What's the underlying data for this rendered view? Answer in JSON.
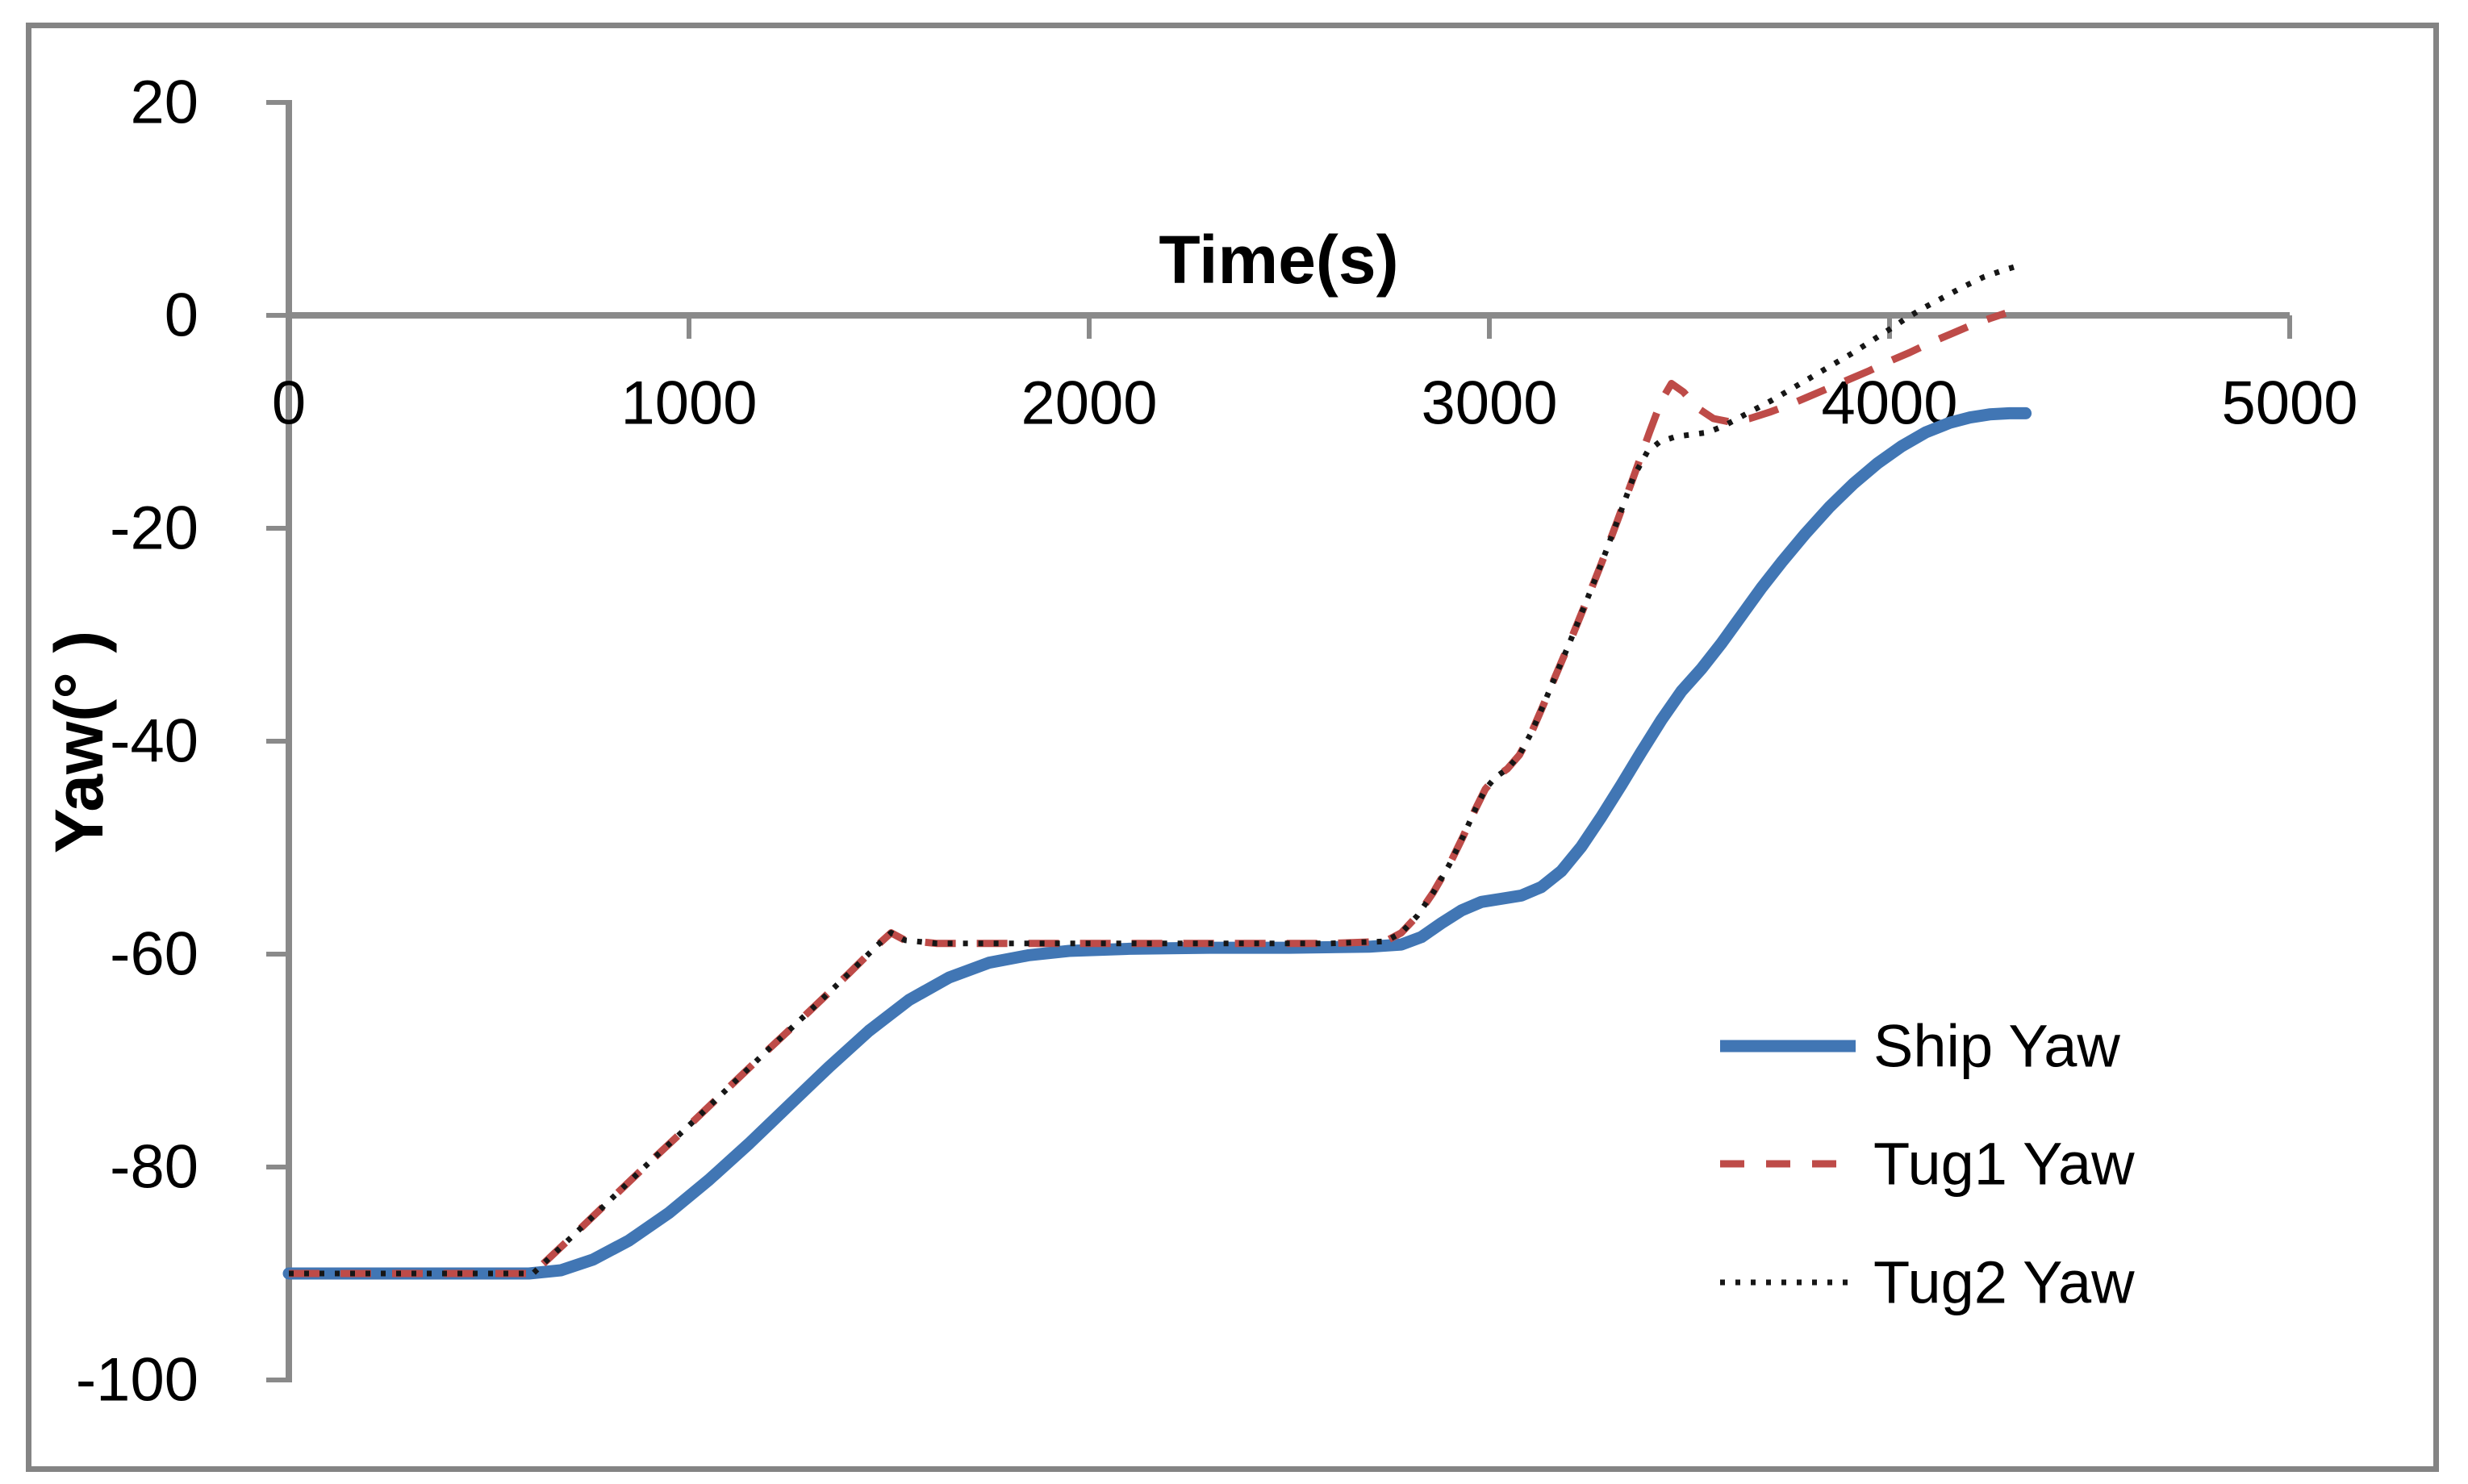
{
  "chart_data": {
    "type": "line",
    "title": "",
    "xlabel": "Time(s)",
    "ylabel": "Yaw(° )",
    "xlim": [
      0,
      5000
    ],
    "ylim": [
      -100,
      20
    ],
    "x_ticks": [
      0,
      1000,
      2000,
      3000,
      4000,
      5000
    ],
    "y_ticks": [
      20,
      0,
      -20,
      -40,
      -60,
      -80,
      -100
    ],
    "grid": false,
    "legend_position": "lower-right-inside",
    "axis_color": "#8a8a8a",
    "series": [
      {
        "name": "Ship Yaw",
        "key": "ship",
        "color": "#4176b4",
        "style": "solid",
        "width": 15,
        "points": [
          [
            0,
            -90
          ],
          [
            300,
            -90
          ],
          [
            600,
            -90
          ],
          [
            680,
            -89.7
          ],
          [
            760,
            -88.7
          ],
          [
            850,
            -86.9
          ],
          [
            950,
            -84.3
          ],
          [
            1050,
            -81.2
          ],
          [
            1150,
            -77.8
          ],
          [
            1250,
            -74.2
          ],
          [
            1350,
            -70.6
          ],
          [
            1450,
            -67.2
          ],
          [
            1550,
            -64.3
          ],
          [
            1650,
            -62.2
          ],
          [
            1750,
            -60.8
          ],
          [
            1850,
            -60.1
          ],
          [
            1950,
            -59.7
          ],
          [
            2100,
            -59.5
          ],
          [
            2300,
            -59.4
          ],
          [
            2500,
            -59.4
          ],
          [
            2700,
            -59.3
          ],
          [
            2780,
            -59.1
          ],
          [
            2830,
            -58.4
          ],
          [
            2880,
            -57.1
          ],
          [
            2930,
            -55.9
          ],
          [
            2980,
            -55.1
          ],
          [
            3030,
            -54.8
          ],
          [
            3080,
            -54.5
          ],
          [
            3130,
            -53.7
          ],
          [
            3180,
            -52.2
          ],
          [
            3230,
            -49.9
          ],
          [
            3280,
            -47.1
          ],
          [
            3330,
            -44.1
          ],
          [
            3380,
            -41.0
          ],
          [
            3430,
            -38.0
          ],
          [
            3480,
            -35.3
          ],
          [
            3530,
            -33.2
          ],
          [
            3580,
            -30.8
          ],
          [
            3630,
            -28.2
          ],
          [
            3680,
            -25.6
          ],
          [
            3730,
            -23.2
          ],
          [
            3790,
            -20.5
          ],
          [
            3850,
            -18.0
          ],
          [
            3910,
            -15.8
          ],
          [
            3970,
            -13.9
          ],
          [
            4030,
            -12.3
          ],
          [
            4090,
            -11.0
          ],
          [
            4150,
            -10.1
          ],
          [
            4200,
            -9.6
          ],
          [
            4250,
            -9.3
          ],
          [
            4300,
            -9.2
          ],
          [
            4340,
            -9.2
          ]
        ]
      },
      {
        "name": "Tug1 Yaw",
        "key": "tug1",
        "color": "#be4b48",
        "style": "dashed",
        "width": 9,
        "points": [
          [
            0,
            -90
          ],
          [
            300,
            -90
          ],
          [
            610,
            -90
          ],
          [
            700,
            -86.8
          ],
          [
            800,
            -83.2
          ],
          [
            900,
            -79.6
          ],
          [
            1000,
            -76.1
          ],
          [
            1100,
            -72.5
          ],
          [
            1200,
            -68.9
          ],
          [
            1300,
            -65.4
          ],
          [
            1400,
            -61.8
          ],
          [
            1470,
            -59.2
          ],
          [
            1505,
            -58.0
          ],
          [
            1540,
            -58.7
          ],
          [
            1620,
            -59.0
          ],
          [
            1800,
            -59.0
          ],
          [
            2000,
            -59.0
          ],
          [
            2200,
            -59.0
          ],
          [
            2400,
            -59.0
          ],
          [
            2600,
            -59.0
          ],
          [
            2740,
            -58.8
          ],
          [
            2780,
            -58.0
          ],
          [
            2820,
            -56.4
          ],
          [
            2860,
            -54.2
          ],
          [
            2900,
            -51.6
          ],
          [
            2935,
            -48.9
          ],
          [
            2965,
            -46.4
          ],
          [
            2990,
            -44.5
          ],
          [
            3015,
            -43.4
          ],
          [
            3045,
            -42.6
          ],
          [
            3075,
            -41.3
          ],
          [
            3105,
            -39.2
          ],
          [
            3135,
            -36.6
          ],
          [
            3165,
            -33.9
          ],
          [
            3200,
            -30.8
          ],
          [
            3240,
            -27.1
          ],
          [
            3280,
            -23.3
          ],
          [
            3320,
            -19.3
          ],
          [
            3360,
            -15.2
          ],
          [
            3400,
            -11.0
          ],
          [
            3430,
            -8.0
          ],
          [
            3455,
            -6.4
          ],
          [
            3485,
            -7.2
          ],
          [
            3520,
            -8.7
          ],
          [
            3560,
            -9.7
          ],
          [
            3600,
            -10.0
          ],
          [
            3650,
            -9.7
          ],
          [
            3700,
            -9.1
          ],
          [
            3750,
            -8.4
          ],
          [
            3800,
            -7.6
          ],
          [
            3850,
            -6.8
          ],
          [
            3900,
            -6.0
          ],
          [
            3950,
            -5.2
          ],
          [
            4000,
            -4.3
          ],
          [
            4050,
            -3.5
          ],
          [
            4100,
            -2.6
          ],
          [
            4150,
            -1.8
          ],
          [
            4200,
            -1.0
          ],
          [
            4250,
            -0.3
          ],
          [
            4290,
            0.2
          ]
        ]
      },
      {
        "name": "Tug2 Yaw",
        "key": "tug2",
        "color": "#161616",
        "style": "dotted",
        "width": 7,
        "points": [
          [
            0,
            -90
          ],
          [
            300,
            -90
          ],
          [
            610,
            -90
          ],
          [
            700,
            -86.8
          ],
          [
            800,
            -83.2
          ],
          [
            900,
            -79.6
          ],
          [
            1000,
            -76.1
          ],
          [
            1100,
            -72.5
          ],
          [
            1200,
            -68.9
          ],
          [
            1300,
            -65.4
          ],
          [
            1400,
            -61.8
          ],
          [
            1470,
            -59.2
          ],
          [
            1505,
            -58.0
          ],
          [
            1540,
            -58.7
          ],
          [
            1620,
            -59.0
          ],
          [
            1800,
            -59.0
          ],
          [
            2000,
            -59.0
          ],
          [
            2200,
            -59.0
          ],
          [
            2400,
            -59.0
          ],
          [
            2600,
            -59.0
          ],
          [
            2740,
            -58.8
          ],
          [
            2780,
            -58.0
          ],
          [
            2820,
            -56.4
          ],
          [
            2860,
            -54.2
          ],
          [
            2900,
            -51.6
          ],
          [
            2935,
            -48.9
          ],
          [
            2965,
            -46.4
          ],
          [
            2990,
            -44.5
          ],
          [
            3015,
            -43.4
          ],
          [
            3045,
            -42.6
          ],
          [
            3075,
            -41.3
          ],
          [
            3105,
            -39.2
          ],
          [
            3135,
            -36.6
          ],
          [
            3165,
            -33.9
          ],
          [
            3200,
            -30.8
          ],
          [
            3240,
            -27.1
          ],
          [
            3280,
            -23.3
          ],
          [
            3320,
            -19.3
          ],
          [
            3360,
            -15.2
          ],
          [
            3395,
            -12.8
          ],
          [
            3425,
            -11.9
          ],
          [
            3465,
            -11.4
          ],
          [
            3505,
            -11.2
          ],
          [
            3545,
            -11.0
          ],
          [
            3585,
            -10.4
          ],
          [
            3625,
            -9.6
          ],
          [
            3665,
            -8.8
          ],
          [
            3705,
            -8.0
          ],
          [
            3755,
            -6.9
          ],
          [
            3805,
            -5.8
          ],
          [
            3855,
            -4.7
          ],
          [
            3905,
            -3.6
          ],
          [
            3955,
            -2.4
          ],
          [
            4005,
            -1.2
          ],
          [
            4045,
            -0.2
          ],
          [
            4085,
            0.7
          ],
          [
            4135,
            1.7
          ],
          [
            4185,
            2.7
          ],
          [
            4235,
            3.6
          ],
          [
            4290,
            4.3
          ],
          [
            4335,
            4.8
          ]
        ]
      }
    ]
  },
  "legend": {
    "entries": [
      {
        "label": "Ship Yaw",
        "series": "ship"
      },
      {
        "label": "Tug1 Yaw",
        "series": "tug1"
      },
      {
        "label": "Tug2 Yaw",
        "series": "tug2"
      }
    ]
  }
}
